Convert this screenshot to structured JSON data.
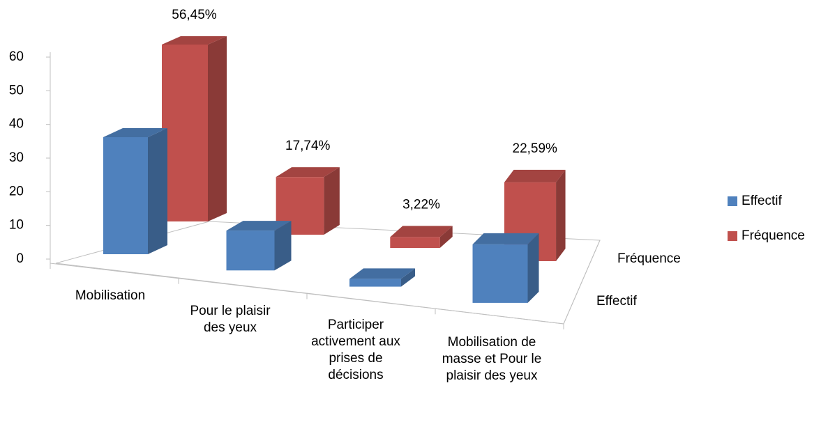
{
  "chart_data": {
    "type": "bar3d",
    "categories": [
      "Mobilisation",
      "Pour le plaisir des yeux",
      "Participer activement aux prises de décisions",
      "Mobilisation de masse et Pour le plaisir des yeux"
    ],
    "series": [
      {
        "name": "Effectif",
        "color": "#4F81BD",
        "values": [
          35,
          11,
          2,
          14
        ]
      },
      {
        "name": "Fréquence",
        "color": "#C0504D",
        "values": [
          56.45,
          17.74,
          3.22,
          22.59
        ],
        "value_labels": [
          "56,45%",
          "17,74%",
          "3,22%",
          "22,59%"
        ]
      }
    ],
    "ylim": [
      0,
      60
    ],
    "yticks": [
      0,
      10,
      20,
      30,
      40,
      50,
      60
    ],
    "legend": "right"
  }
}
